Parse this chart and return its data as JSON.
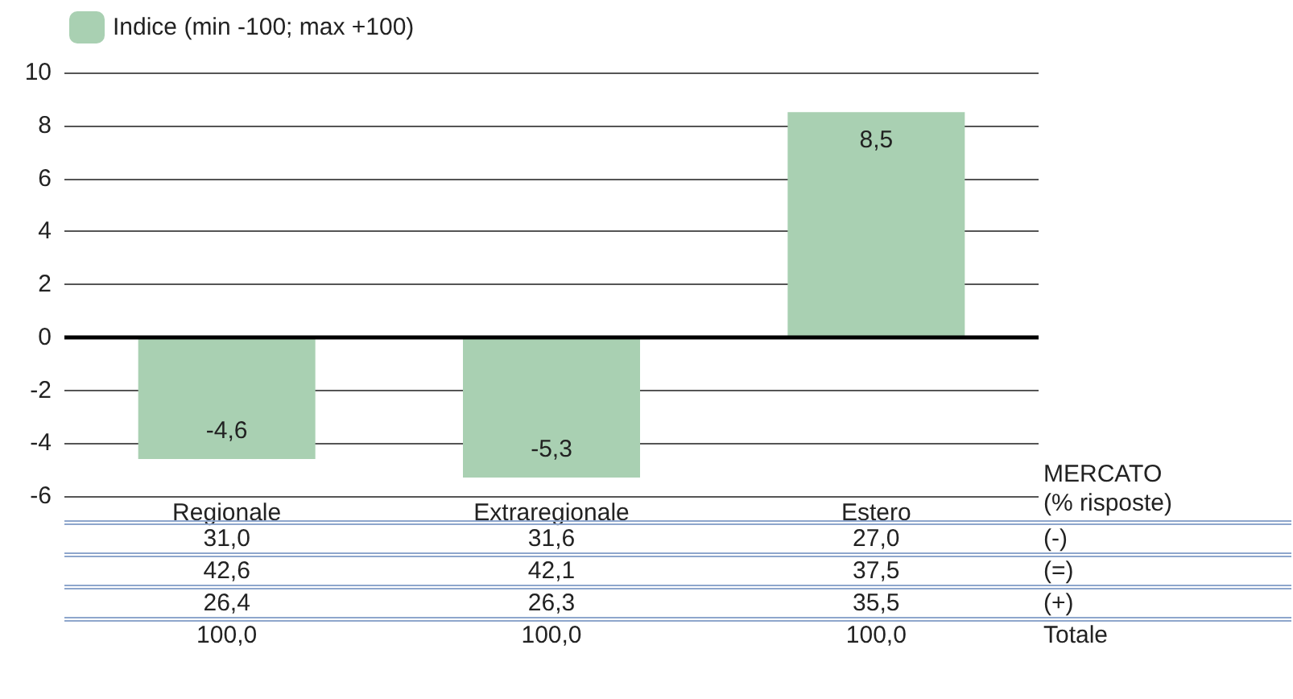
{
  "chart_data": {
    "type": "bar",
    "categories": [
      "Regionale",
      "Extraregionale",
      "Estero"
    ],
    "series": [
      {
        "name": "Indice (min -100; max +100)",
        "color": "#a9d0b2",
        "values": [
          -4.6,
          -5.3,
          8.5
        ],
        "value_labels": [
          "-4,6",
          "-5,3",
          "8,5"
        ]
      }
    ],
    "ylim": [
      -6,
      10
    ],
    "yticks": [
      -6,
      -4,
      -2,
      0,
      2,
      4,
      6,
      8,
      10
    ],
    "grid": "y",
    "legend": "top left",
    "ref_lines": [
      {
        "axis": "y",
        "value": 0,
        "color": "#000000"
      }
    ],
    "annotations": [
      "MERCATO",
      "(% risposte)",
      "31,0",
      "31,6",
      "27,0",
      "(-)",
      "42,6",
      "42,1",
      "37,5",
      "(=)",
      "26,4",
      "26,3",
      "35,5",
      "(+)",
      "100,0",
      "100,0",
      "100,0",
      "Totale"
    ]
  }
}
